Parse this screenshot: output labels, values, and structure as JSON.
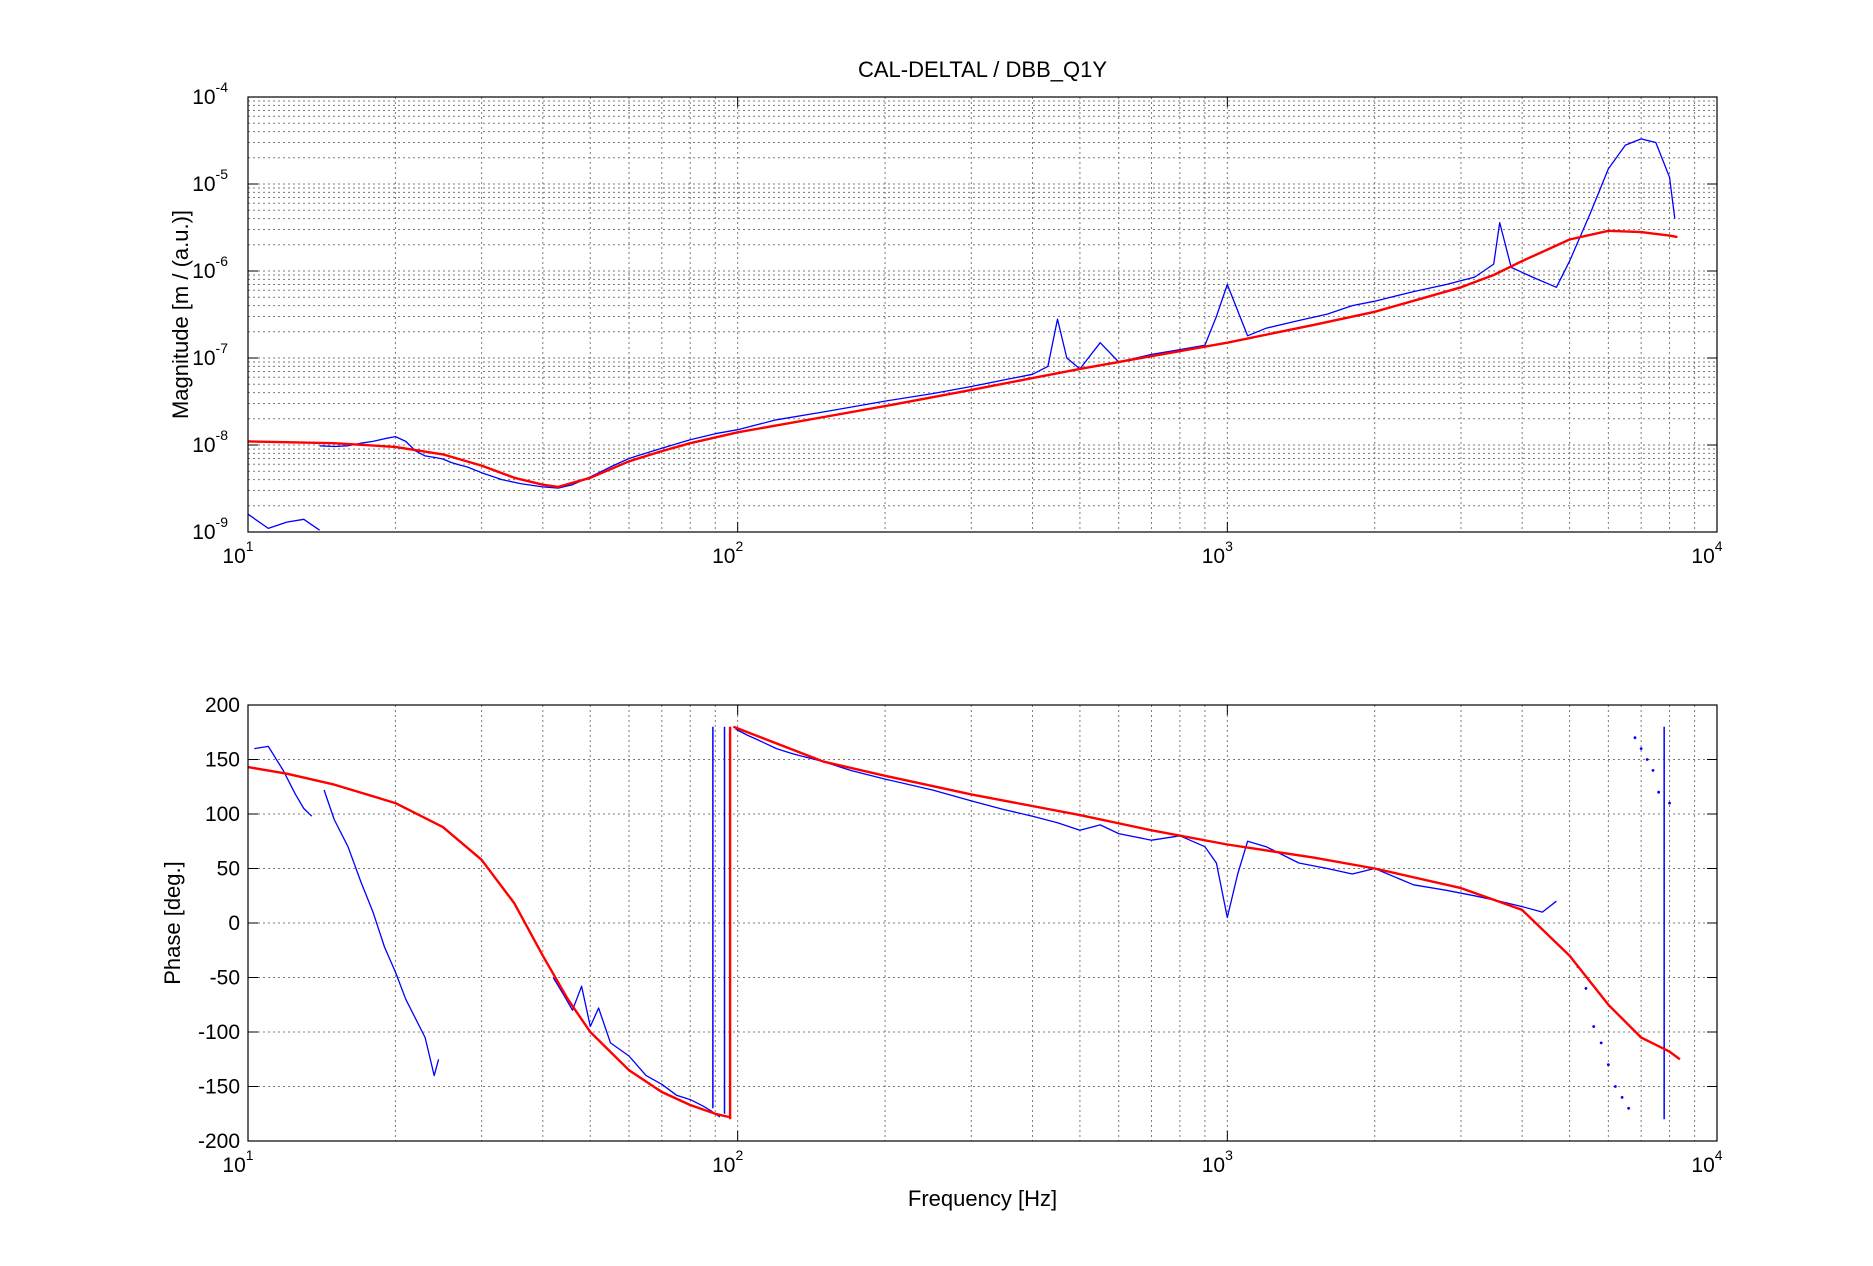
{
  "chart_data": [
    {
      "type": "line",
      "title": "CAL-DELTAL / DBB_Q1Y",
      "xlabel": "",
      "ylabel": "Magnitude [m / (a.u.)]",
      "xscale": "log",
      "yscale": "log",
      "xlim": [
        10,
        10000
      ],
      "ylim": [
        1e-09,
        0.0001
      ],
      "grid": true,
      "x_ticks": [
        {
          "base": "10",
          "exp": "1",
          "value": 10
        },
        {
          "base": "10",
          "exp": "2",
          "value": 100
        },
        {
          "base": "10",
          "exp": "3",
          "value": 1000
        },
        {
          "base": "10",
          "exp": "4",
          "value": 10000
        }
      ],
      "y_ticks": [
        {
          "base": "10",
          "exp": "-9",
          "value": 1e-09
        },
        {
          "base": "10",
          "exp": "-8",
          "value": 1e-08
        },
        {
          "base": "10",
          "exp": "-7",
          "value": 1e-07
        },
        {
          "base": "10",
          "exp": "-6",
          "value": 1e-06
        },
        {
          "base": "10",
          "exp": "-5",
          "value": 1e-05
        },
        {
          "base": "10",
          "exp": "-4",
          "value": 0.0001
        }
      ],
      "series": [
        {
          "color": "#0000ff",
          "style": "noisy",
          "segments": [
            {
              "x": [
                10,
                11,
                12,
                13,
                14
              ],
              "y": [
                1.6e-09,
                1.1e-09,
                1.3e-09,
                1.4e-09,
                1.05e-09
              ]
            },
            {
              "x": [
                14,
                15,
                16,
                17,
                18,
                19,
                20,
                21,
                22,
                23,
                24,
                25,
                26,
                27,
                28,
                30,
                33,
                36,
                40,
                43,
                46,
                50,
                55,
                60,
                70,
                80,
                90,
                100,
                120,
                150,
                200,
                250,
                300,
                350,
                400,
                430,
                450,
                470,
                500,
                550,
                600,
                700,
                800,
                900,
                950,
                1000,
                1050,
                1100,
                1200,
                1400,
                1600,
                1800,
                2000,
                2400,
                2800,
                3200,
                3500,
                3600,
                3800,
                4200,
                4700,
                5000,
                5500,
                6000,
                6500,
                7000,
                7500,
                8000,
                8200
              ],
              "y": [
                9.8e-09,
                9.6e-09,
                9.8e-09,
                1.05e-08,
                1.1e-08,
                1.18e-08,
                1.25e-08,
                1.1e-08,
                8.5e-09,
                7.5e-09,
                7.2e-09,
                6.9e-09,
                6.3e-09,
                5.9e-09,
                5.6e-09,
                4.8e-09,
                4e-09,
                3.6e-09,
                3.3e-09,
                3.2e-09,
                3.5e-09,
                4.3e-09,
                5.6e-09,
                7e-09,
                9.2e-09,
                1.15e-08,
                1.35e-08,
                1.5e-08,
                1.95e-08,
                2.4e-08,
                3.2e-08,
                3.9e-08,
                4.7e-08,
                5.6e-08,
                6.5e-08,
                8e-08,
                2.8e-07,
                1e-07,
                7.5e-08,
                1.5e-07,
                9e-08,
                1.1e-07,
                1.25e-07,
                1.4e-07,
                3e-07,
                7e-07,
                3.5e-07,
                1.8e-07,
                2.2e-07,
                2.7e-07,
                3.2e-07,
                4e-07,
                4.5e-07,
                5.8e-07,
                7e-07,
                8.5e-07,
                1.2e-06,
                3.6e-06,
                1.1e-06,
                8.5e-07,
                6.5e-07,
                1.3e-06,
                4.5e-06,
                1.5e-05,
                2.8e-05,
                3.3e-05,
                3e-05,
                1.2e-05,
                4e-06
              ]
            }
          ]
        },
        {
          "color": "#ff0000",
          "style": "smooth",
          "segments": [
            {
              "x": [
                10,
                15,
                20,
                25,
                30,
                35,
                40,
                43,
                50,
                60,
                70,
                80,
                100,
                150,
                200,
                300,
                500,
                700,
                1000,
                1500,
                2000,
                3000,
                3500,
                4000,
                5000,
                6000,
                7000,
                8000,
                8300
              ],
              "y": [
                1.1e-08,
                1.05e-08,
                9.5e-09,
                7.8e-09,
                5.8e-09,
                4.2e-09,
                3.5e-09,
                3.3e-09,
                4.2e-09,
                6.5e-09,
                8.5e-09,
                1.05e-08,
                1.4e-08,
                2.1e-08,
                2.8e-08,
                4.3e-08,
                7.5e-08,
                1.05e-07,
                1.5e-07,
                2.4e-07,
                3.4e-07,
                6.5e-07,
                9e-07,
                1.3e-06,
                2.3e-06,
                2.9e-06,
                2.8e-06,
                2.55e-06,
                2.45e-06
              ]
            }
          ]
        }
      ]
    },
    {
      "type": "line",
      "title": "",
      "xlabel": "Frequency [Hz]",
      "ylabel": "Phase [deg.]",
      "xscale": "log",
      "yscale": "linear",
      "xlim": [
        10,
        10000
      ],
      "ylim": [
        -200,
        200
      ],
      "grid": true,
      "x_ticks": [
        {
          "base": "10",
          "exp": "1",
          "value": 10
        },
        {
          "base": "10",
          "exp": "2",
          "value": 100
        },
        {
          "base": "10",
          "exp": "3",
          "value": 1000
        },
        {
          "base": "10",
          "exp": "4",
          "value": 10000
        }
      ],
      "y_ticks": [
        {
          "label": "-200",
          "value": -200
        },
        {
          "label": "-150",
          "value": -150
        },
        {
          "label": "-100",
          "value": -100
        },
        {
          "label": "-50",
          "value": -50
        },
        {
          "label": "0",
          "value": 0
        },
        {
          "label": "50",
          "value": 50
        },
        {
          "label": "100",
          "value": 100
        },
        {
          "label": "150",
          "value": 150
        },
        {
          "label": "200",
          "value": 200
        }
      ],
      "series": [
        {
          "color": "#0000ff",
          "style": "noisy",
          "segments": [
            {
              "x": [
                10.3,
                11,
                11.8,
                12.5,
                13,
                13.5
              ],
              "y": [
                160,
                162,
                140,
                118,
                105,
                98
              ]
            },
            {
              "x": [
                14.3,
                15,
                16,
                17,
                18,
                19,
                20,
                21,
                22,
                23,
                24,
                24.5
              ],
              "y": [
                122,
                95,
                70,
                38,
                10,
                -22,
                -45,
                -70,
                -88,
                -105,
                -140,
                -125
              ]
            },
            {
              "x": [
                42,
                44,
                46,
                48,
                50,
                52,
                55,
                60,
                65,
                70,
                75,
                80,
                85,
                88,
                90,
                92
              ],
              "y": [
                -50,
                -65,
                -80,
                -58,
                -95,
                -78,
                -110,
                -122,
                -140,
                -148,
                -158,
                -162,
                -168,
                -172,
                -175,
                -178
              ]
            },
            {
              "x": [
                99,
                105,
                110,
                120,
                130,
                150,
                170,
                200,
                250,
                300,
                350,
                400,
                450,
                500,
                550,
                600,
                700,
                800,
                900,
                950,
                1000,
                1050,
                1100,
                1200,
                1400,
                1600,
                1800,
                2000,
                2400,
                2800,
                3200,
                3600,
                4000,
                4400,
                4700
              ],
              "y": [
                178,
                172,
                168,
                160,
                155,
                148,
                140,
                132,
                122,
                112,
                104,
                98,
                92,
                85,
                90,
                82,
                76,
                80,
                70,
                55,
                5,
                45,
                75,
                70,
                55,
                50,
                45,
                50,
                35,
                30,
                25,
                20,
                15,
                10,
                20
              ]
            }
          ],
          "vlines": [
            {
              "x": 89,
              "y": [
                -170,
                180
              ]
            },
            {
              "x": 94,
              "y": [
                -175,
                180
              ]
            },
            {
              "x": 7800,
              "y": [
                -180,
                180
              ]
            }
          ],
          "dots": [
            {
              "x": [
                5200,
                5400,
                5600,
                5800,
                6000,
                6200,
                6400,
                6600,
                6800,
                7000,
                7200,
                7400,
                7600,
                8000
              ],
              "y": [
                -40,
                -60,
                -95,
                -110,
                -130,
                -150,
                -160,
                -170,
                170,
                160,
                150,
                140,
                120,
                110
              ]
            }
          ]
        },
        {
          "color": "#ff0000",
          "style": "smooth",
          "segments": [
            {
              "x": [
                10,
                12,
                15,
                20,
                25,
                30,
                35,
                40,
                45,
                50,
                60,
                70,
                80,
                90,
                96
              ],
              "y": [
                143,
                137,
                127,
                110,
                88,
                58,
                18,
                -30,
                -70,
                -100,
                -135,
                -155,
                -167,
                -175,
                -178
              ]
            },
            {
              "x": [
                98,
                150,
                200,
                300,
                500,
                700,
                1000,
                1500,
                2000,
                3000,
                4000,
                5000,
                6000,
                7000,
                8000,
                8400
              ],
              "y": [
                180,
                148,
                135,
                118,
                99,
                85,
                72,
                60,
                50,
                32,
                12,
                -30,
                -75,
                -105,
                -118,
                -125
              ]
            }
          ],
          "vlines": [
            {
              "x": 96.5,
              "y": [
                -180,
                180
              ]
            }
          ]
        }
      ]
    }
  ]
}
